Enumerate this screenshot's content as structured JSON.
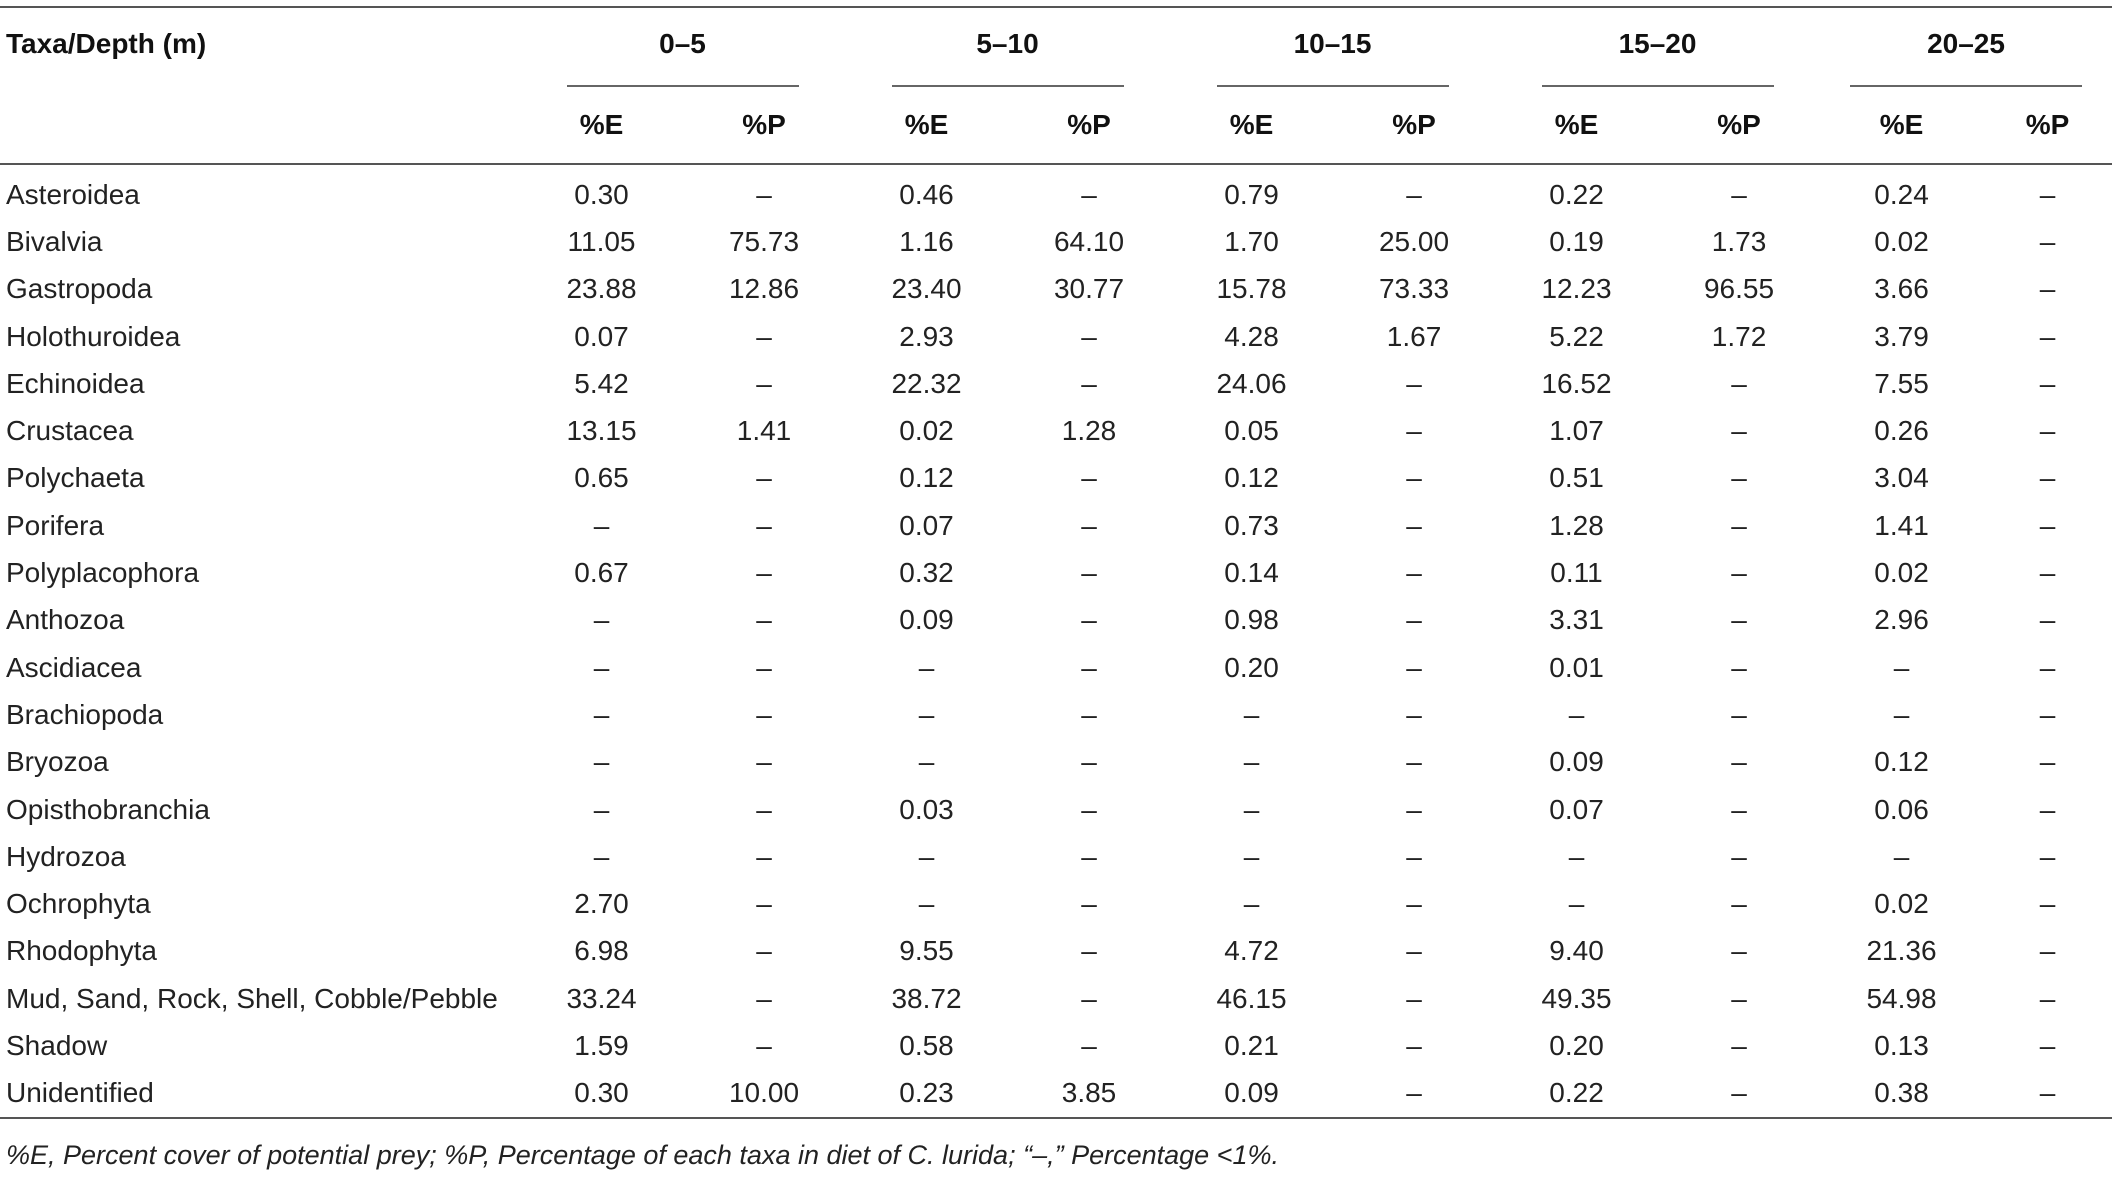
{
  "table": {
    "taxa_header": "Taxa/Depth (m)",
    "depths": [
      "0–5",
      "5–10",
      "10–15",
      "15–20",
      "20–25"
    ],
    "subheaders": [
      "%E",
      "%P"
    ],
    "rows": [
      {
        "taxa": "Asteroidea",
        "values": [
          "0.30",
          "–",
          "0.46",
          "–",
          "0.79",
          "–",
          "0.22",
          "–",
          "0.24",
          "–"
        ]
      },
      {
        "taxa": "Bivalvia",
        "values": [
          "11.05",
          "75.73",
          "1.16",
          "64.10",
          "1.70",
          "25.00",
          "0.19",
          "1.73",
          "0.02",
          "–"
        ]
      },
      {
        "taxa": "Gastropoda",
        "values": [
          "23.88",
          "12.86",
          "23.40",
          "30.77",
          "15.78",
          "73.33",
          "12.23",
          "96.55",
          "3.66",
          "–"
        ]
      },
      {
        "taxa": "Holothuroidea",
        "values": [
          "0.07",
          "–",
          "2.93",
          "–",
          "4.28",
          "1.67",
          "5.22",
          "1.72",
          "3.79",
          "–"
        ]
      },
      {
        "taxa": "Echinoidea",
        "values": [
          "5.42",
          "–",
          "22.32",
          "–",
          "24.06",
          "–",
          "16.52",
          "–",
          "7.55",
          "–"
        ]
      },
      {
        "taxa": "Crustacea",
        "values": [
          "13.15",
          "1.41",
          "0.02",
          "1.28",
          "0.05",
          "–",
          "1.07",
          "–",
          "0.26",
          "–"
        ]
      },
      {
        "taxa": "Polychaeta",
        "values": [
          "0.65",
          "–",
          "0.12",
          "–",
          "0.12",
          "–",
          "0.51",
          "–",
          "3.04",
          "–"
        ]
      },
      {
        "taxa": "Porifera",
        "values": [
          "–",
          "–",
          "0.07",
          "–",
          "0.73",
          "–",
          "1.28",
          "–",
          "1.41",
          "–"
        ]
      },
      {
        "taxa": "Polyplacophora",
        "values": [
          "0.67",
          "–",
          "0.32",
          "–",
          "0.14",
          "–",
          "0.11",
          "–",
          "0.02",
          "–"
        ]
      },
      {
        "taxa": "Anthozoa",
        "values": [
          "–",
          "–",
          "0.09",
          "–",
          "0.98",
          "–",
          "3.31",
          "–",
          "2.96",
          "–"
        ]
      },
      {
        "taxa": "Ascidiacea",
        "values": [
          "–",
          "–",
          "–",
          "–",
          "0.20",
          "–",
          "0.01",
          "–",
          "–",
          "–"
        ]
      },
      {
        "taxa": "Brachiopoda",
        "values": [
          "–",
          "–",
          "–",
          "–",
          "–",
          "–",
          "–",
          "–",
          "–",
          "–"
        ]
      },
      {
        "taxa": "Bryozoa",
        "values": [
          "–",
          "–",
          "–",
          "–",
          "–",
          "–",
          "0.09",
          "–",
          "0.12",
          "–"
        ]
      },
      {
        "taxa": "Opisthobranchia",
        "values": [
          "–",
          "–",
          "0.03",
          "–",
          "–",
          "–",
          "0.07",
          "–",
          "0.06",
          "–"
        ]
      },
      {
        "taxa": "Hydrozoa",
        "values": [
          "–",
          "–",
          "–",
          "–",
          "–",
          "–",
          "–",
          "–",
          "–",
          "–"
        ]
      },
      {
        "taxa": "Ochrophyta",
        "values": [
          "2.70",
          "–",
          "–",
          "–",
          "–",
          "–",
          "–",
          "–",
          "0.02",
          "–"
        ]
      },
      {
        "taxa": "Rhodophyta",
        "values": [
          "6.98",
          "–",
          "9.55",
          "–",
          "4.72",
          "–",
          "9.40",
          "–",
          "21.36",
          "–"
        ]
      },
      {
        "taxa": "Mud, Sand, Rock, Shell, Cobble/Pebble",
        "values": [
          "33.24",
          "–",
          "38.72",
          "–",
          "46.15",
          "–",
          "49.35",
          "–",
          "54.98",
          "–"
        ]
      },
      {
        "taxa": "Shadow",
        "values": [
          "1.59",
          "–",
          "0.58",
          "–",
          "0.21",
          "–",
          "0.20",
          "–",
          "0.13",
          "–"
        ]
      },
      {
        "taxa": "Unidentified",
        "values": [
          "0.30",
          "10.00",
          "0.23",
          "3.85",
          "0.09",
          "–",
          "0.22",
          "–",
          "0.38",
          "–"
        ]
      }
    ],
    "footnote": "%E, Percent cover of potential prey; %P, Percentage of each taxa in diet of C. lurida; “–,” Percentage <1%."
  }
}
